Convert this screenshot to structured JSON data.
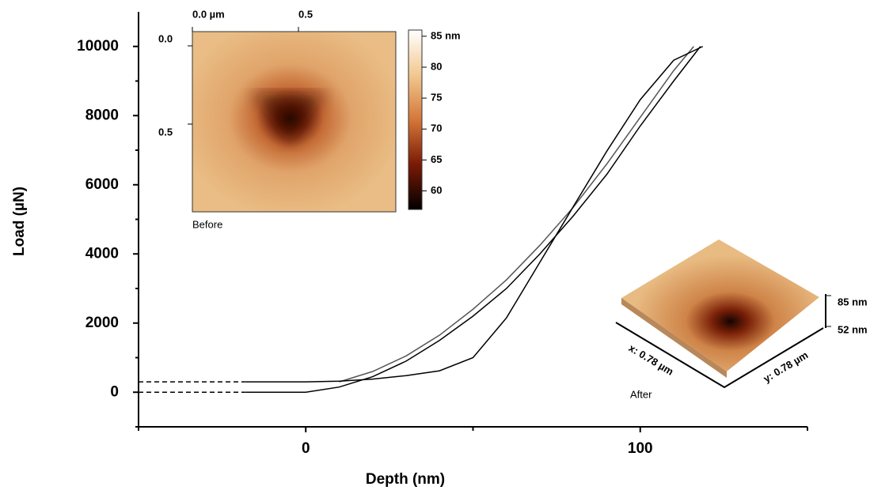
{
  "chart_data": {
    "type": "line",
    "xlabel": "Depth (nm)",
    "ylabel": "Load (µN)",
    "xlim": [
      -50,
      150
    ],
    "xticks": [
      0,
      100
    ],
    "xminor": [
      -50,
      50,
      150
    ],
    "ylim": [
      -1000,
      11000
    ],
    "yticks": [
      0,
      2000,
      4000,
      6000,
      8000,
      10000
    ],
    "yminor": [
      -1000,
      1000,
      3000,
      5000,
      7000,
      9000
    ],
    "series": [
      {
        "color": "#000000",
        "dashed": true,
        "x": [
          -50,
          -18
        ],
        "values": [
          0,
          0
        ]
      },
      {
        "color": "#000000",
        "dashed": true,
        "x": [
          -50,
          -18
        ],
        "values": [
          300,
          300
        ]
      },
      {
        "color": "#000000",
        "dashed": false,
        "x": [
          -18,
          0,
          10,
          20,
          30,
          40,
          50,
          60,
          70,
          80,
          90,
          100,
          110,
          118
        ],
        "values": [
          0,
          0,
          150,
          450,
          900,
          1500,
          2200,
          3000,
          4000,
          5100,
          6300,
          7700,
          9000,
          10000
        ]
      },
      {
        "color": "#555555",
        "dashed": false,
        "x": [
          10,
          20,
          30,
          40,
          50,
          60,
          70,
          80,
          90,
          100,
          110,
          116
        ],
        "values": [
          300,
          600,
          1050,
          1650,
          2400,
          3250,
          4250,
          5350,
          6600,
          7950,
          9300,
          10000
        ]
      },
      {
        "color": "#000000",
        "dashed": false,
        "x": [
          -18,
          0,
          10,
          20,
          30,
          40,
          50,
          60,
          70,
          80,
          90,
          100,
          110,
          118.7
        ],
        "values": [
          300,
          300,
          320,
          380,
          480,
          620,
          1000,
          2150,
          3760,
          5370,
          6970,
          8460,
          9600,
          10000
        ]
      }
    ],
    "insets": {
      "before": {
        "caption": "Before",
        "x_labels": [
          "0.0 µm",
          "0.5"
        ],
        "y_labels": [
          "0.0",
          "0.5"
        ],
        "colorbar": {
          "lim": [
            57,
            86
          ],
          "ticks": [
            {
              "value": 85,
              "label": "85 nm"
            },
            80,
            75,
            70,
            65,
            60
          ]
        }
      },
      "after": {
        "caption": "After",
        "z_labels": [
          "85 nm",
          "52 nm"
        ],
        "x_label": "x: 0.78 µm",
        "y_label": "y: 0.78 µm"
      }
    }
  }
}
